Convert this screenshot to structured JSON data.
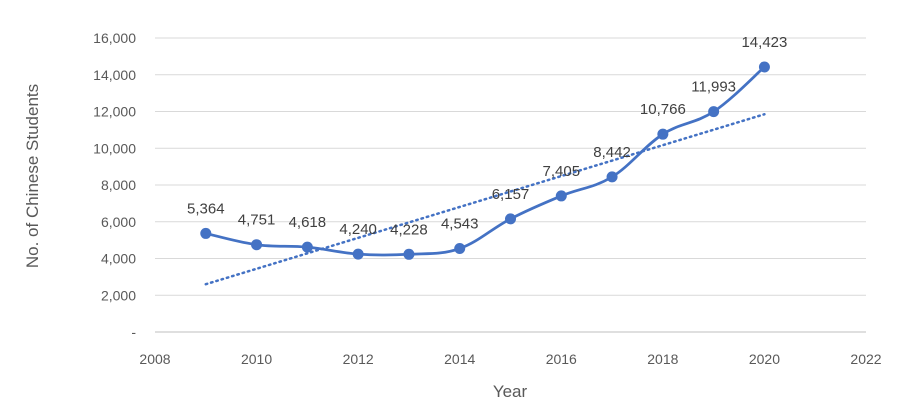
{
  "chart_data": {
    "type": "line",
    "title": "",
    "xlabel": "Year",
    "ylabel": "No. of Chinese Students",
    "xlim": [
      2008,
      2022
    ],
    "ylim": [
      0,
      16000
    ],
    "x_ticks": [
      2008,
      2010,
      2012,
      2014,
      2016,
      2018,
      2020,
      2022
    ],
    "x_tick_labels": [
      "2008",
      "2010",
      "2012",
      "2014",
      "2016",
      "2018",
      "2020",
      "2022"
    ],
    "y_ticks": [
      0,
      2000,
      4000,
      6000,
      8000,
      10000,
      12000,
      14000,
      16000
    ],
    "y_tick_labels": [
      "-",
      "2,000",
      "4,000",
      "6,000",
      "8,000",
      "10,000",
      "12,000",
      "14,000",
      "16,000"
    ],
    "grid": "horizontal",
    "legend": "none",
    "series": [
      {
        "x": [
          2009,
          2010,
          2011,
          2012,
          2013,
          2014,
          2015,
          2016,
          2017,
          2018,
          2019,
          2020
        ],
        "values": [
          5364,
          4751,
          4618,
          4240,
          4228,
          4543,
          6157,
          7405,
          8442,
          10766,
          11993,
          14423
        ],
        "data_labels": [
          "5,364",
          "4,751",
          "4,618",
          "4,240",
          "4,228",
          "4,543",
          "6,157",
          "7,405",
          "8,442",
          "10,766",
          "11,993",
          "14,423"
        ],
        "smooth": true,
        "markers": true,
        "color": "#4472C4"
      }
    ],
    "trendline": {
      "kind": "linear",
      "style": "dotted",
      "color": "#4472C4",
      "x": [
        2009,
        2020
      ],
      "values": [
        2600,
        11850
      ]
    }
  }
}
